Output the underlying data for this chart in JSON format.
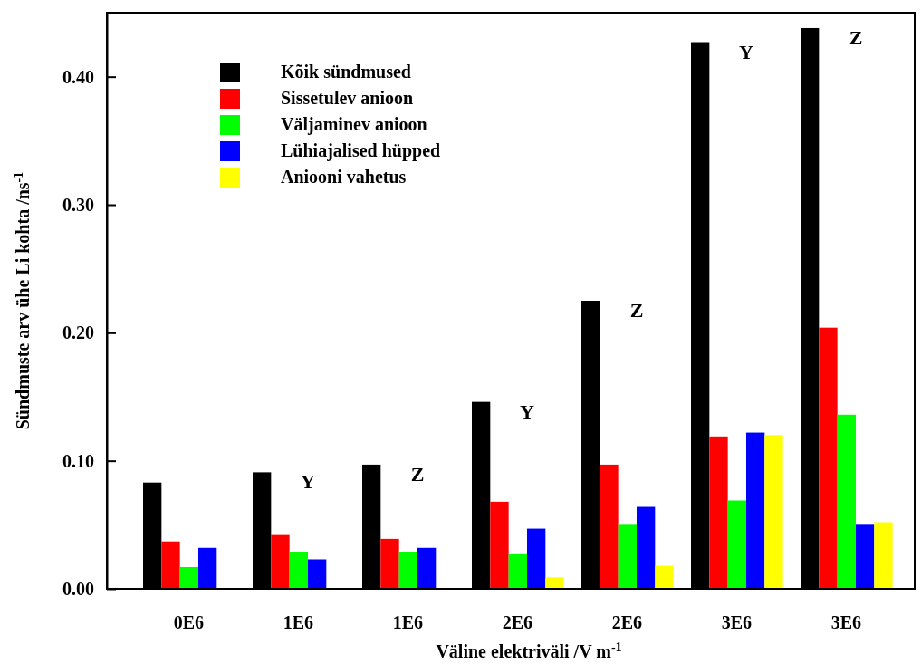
{
  "chart_data": {
    "type": "bar",
    "xlabel": "Väline elektriväli /V m$^{-1}$",
    "ylabel": "Sündmuste arv ühe Li kohta /ns$^{-1}$",
    "categories": [
      "0E6",
      "1E6",
      "1E6",
      "2E6",
      "2E6",
      "3E6",
      "3E6"
    ],
    "series": [
      {
        "name": "Kõik sündmused",
        "color": "#000000",
        "values": [
          0.083,
          0.091,
          0.097,
          0.146,
          0.225,
          0.427,
          0.438
        ]
      },
      {
        "name": "Sissetulev anioon",
        "color": "#ff0000",
        "values": [
          0.037,
          0.042,
          0.039,
          0.068,
          0.097,
          0.119,
          0.204
        ]
      },
      {
        "name": "Väljaminev anioon",
        "color": "#00ff00",
        "values": [
          0.017,
          0.029,
          0.029,
          0.027,
          0.05,
          0.069,
          0.136
        ]
      },
      {
        "name": "Lühiajalised hüpped",
        "color": "#0000ff",
        "values": [
          0.032,
          0.023,
          0.032,
          0.047,
          0.064,
          0.122,
          0.05
        ]
      },
      {
        "name": "Aniooni vahetus",
        "color": "#ffff00",
        "values": [
          null,
          null,
          null,
          0.009,
          0.018,
          0.12,
          0.052
        ]
      }
    ],
    "annotations": [
      "Y",
      "Z",
      "Y",
      "Z",
      "Y",
      "Z"
    ],
    "ylim": [
      0,
      0.45
    ],
    "yticks": [
      {
        "value": 0,
        "label": "0.00"
      },
      {
        "value": 0.1,
        "label": "0.10"
      },
      {
        "value": 0.2,
        "label": "0.20"
      },
      {
        "value": 0.3,
        "label": "0.30"
      },
      {
        "value": 0.4,
        "label": "0.40"
      }
    ],
    "grid": false,
    "legend": "top left"
  }
}
